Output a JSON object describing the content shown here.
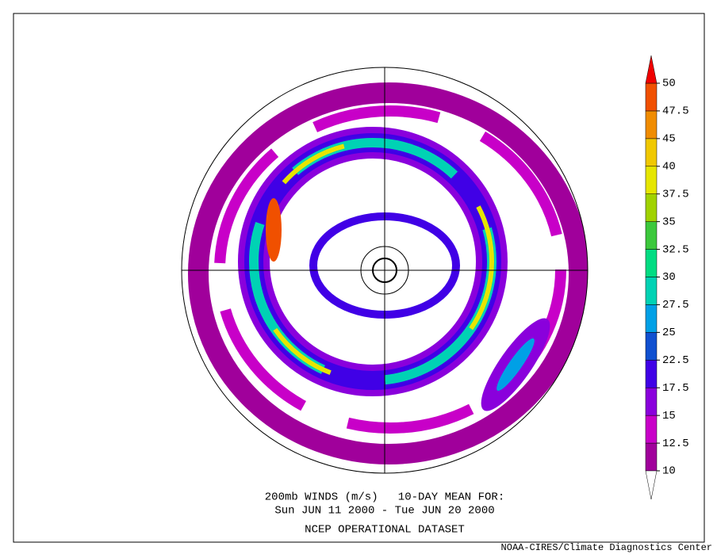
{
  "colorbar": {
    "levels": [
      10,
      12.5,
      15,
      17.5,
      22.5,
      25,
      27.5,
      30,
      32.5,
      35,
      37.5,
      40,
      45,
      47.5,
      50
    ],
    "colors": [
      "#a0009b",
      "#c800c8",
      "#8a00dc",
      "#4000e6",
      "#1050d0",
      "#00a0e6",
      "#00d2b4",
      "#00dc82",
      "#3cc83c",
      "#a0d200",
      "#e6e600",
      "#f0c800",
      "#f08c00",
      "#f05000"
    ],
    "below_color": "#ffffff",
    "above_color": "#f00000"
  },
  "caption": {
    "line1": "200mb WINDS (m/s)   10-DAY MEAN FOR:",
    "line2": "Sun JUN 11 2000 - Tue JUN 20 2000",
    "line3": "NCEP OPERATIONAL DATASET"
  },
  "credit": "NOAA-CIRES/Climate Diagnostics Center"
}
